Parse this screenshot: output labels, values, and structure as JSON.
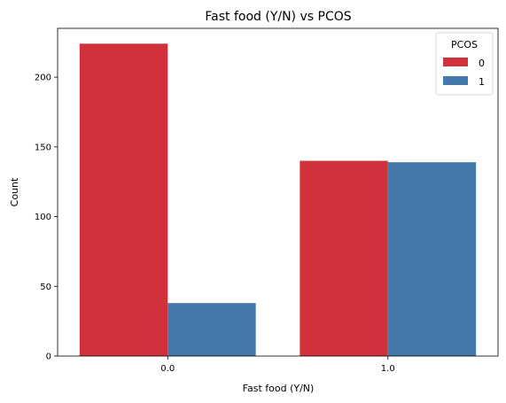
{
  "chart_data": {
    "type": "bar",
    "title": "Fast food (Y/N) vs PCOS",
    "xlabel": "Fast food (Y/N)",
    "ylabel": "Count",
    "categories": [
      "0.0",
      "1.0"
    ],
    "series": [
      {
        "name": "0",
        "values": [
          224,
          140
        ],
        "color": "#d0313a"
      },
      {
        "name": "1",
        "values": [
          38,
          139
        ],
        "color": "#4479aa"
      }
    ],
    "ylim": [
      0,
      235
    ],
    "yticks": [
      0,
      50,
      100,
      150,
      200
    ],
    "legend": {
      "title": "PCOS",
      "position": "top-right"
    },
    "grid": false
  }
}
